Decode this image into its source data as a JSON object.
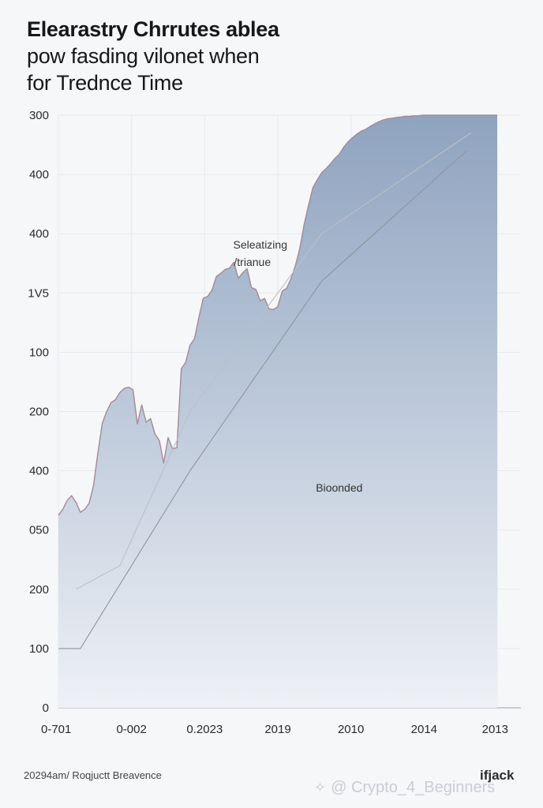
{
  "title_lines": [
    "Elearastry Chrrutes ablea",
    "pow fasding vilonet when",
    "for Trednce Time"
  ],
  "chart_data": {
    "type": "area",
    "y_tick_labels": [
      "300",
      "400",
      "400",
      "1V5",
      "100",
      "200",
      "400",
      "050",
      "200",
      "100",
      "0"
    ],
    "x_tick_labels": [
      "0-701",
      "0-002",
      "0.2023",
      "2019",
      "2010",
      "2014",
      "2013"
    ],
    "ylim": [
      0,
      1000
    ],
    "xlim": [
      0,
      100
    ],
    "x": [
      0,
      1,
      2,
      3,
      4,
      5,
      6,
      7,
      8,
      9,
      10,
      11,
      12,
      13,
      14,
      15,
      16,
      17,
      18,
      19,
      20,
      21,
      22,
      23,
      24,
      25,
      26,
      27,
      28,
      29,
      30,
      31,
      32,
      33,
      34,
      35,
      36,
      37,
      38,
      39,
      40,
      41,
      42,
      43,
      44,
      45,
      46,
      47,
      48,
      49,
      50,
      51,
      52,
      53,
      54,
      55,
      56,
      57,
      58,
      59,
      60,
      61,
      62,
      63,
      64,
      65,
      66,
      67,
      68,
      69,
      70,
      71,
      72,
      73,
      74,
      75,
      76,
      77,
      78,
      79,
      80,
      81,
      82,
      83,
      84,
      85,
      86,
      87,
      88,
      89,
      90,
      91,
      92,
      93,
      94,
      95,
      96,
      97,
      98,
      99,
      100
    ],
    "values": [
      325,
      335,
      350,
      358,
      347,
      330,
      335,
      345,
      375,
      430,
      480,
      500,
      515,
      520,
      532,
      539,
      541,
      537,
      479,
      511,
      482,
      488,
      462,
      451,
      413,
      456,
      437,
      439,
      572,
      583,
      612,
      623,
      658,
      691,
      694,
      705,
      728,
      733,
      740,
      742,
      752,
      725,
      734,
      741,
      709,
      706,
      687,
      691,
      673,
      672,
      677,
      703,
      708,
      724,
      746,
      775,
      816,
      848,
      878,
      891,
      903,
      910,
      918,
      927,
      934,
      946,
      955,
      962,
      968,
      973,
      976,
      981,
      985,
      989,
      992,
      994,
      995,
      996,
      997,
      998,
      998,
      999,
      999,
      1000,
      1000,
      1000,
      1000,
      1000,
      1000,
      1000,
      1000,
      1000,
      1000,
      1000,
      1000,
      1000,
      1000,
      1000,
      1000,
      1000,
      1000
    ],
    "trend_lines": [
      {
        "x": [
          4,
          14,
          30,
          60,
          94
        ],
        "y": [
          200,
          240,
          500,
          800,
          970
        ]
      },
      {
        "x": [
          0,
          5,
          30,
          60,
          93
        ],
        "y": [
          100,
          100,
          400,
          720,
          940
        ]
      }
    ],
    "annotations": [
      {
        "line1": "Seleatizing",
        "line2": "/trianue",
        "x": 46,
        "y": 775
      },
      {
        "line1": "Bioonded",
        "x": 64,
        "y": 365
      }
    ],
    "grid": true
  },
  "footer_text": "20294am/ Roqjuctt Breavence",
  "brand_text": "ifjack",
  "watermark_text": "@ Crypto_4_Beginners"
}
